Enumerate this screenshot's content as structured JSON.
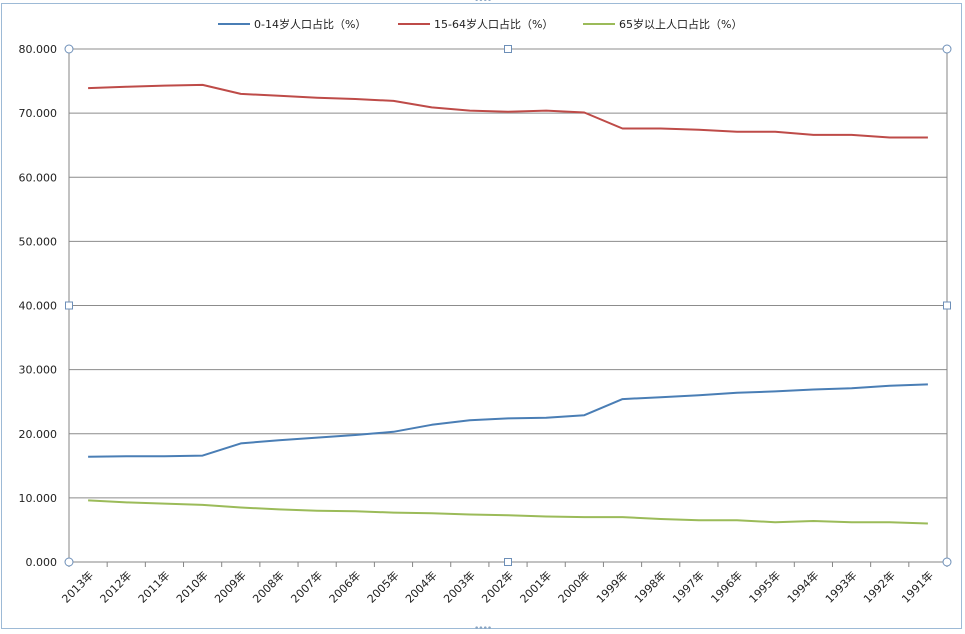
{
  "chart_data": {
    "type": "line",
    "categories": [
      "2013年",
      "2012年",
      "2011年",
      "2010年",
      "2009年",
      "2008年",
      "2007年",
      "2006年",
      "2005年",
      "2004年",
      "2003年",
      "2002年",
      "2001年",
      "2000年",
      "1999年",
      "1998年",
      "1997年",
      "1996年",
      "1995年",
      "1994年",
      "1993年",
      "1992年",
      "1991年"
    ],
    "series": [
      {
        "name": "0-14岁人口占比（%）",
        "color": "#4a7eb5",
        "values": [
          16.4,
          16.5,
          16.5,
          16.6,
          18.5,
          19.0,
          19.4,
          19.8,
          20.3,
          21.4,
          22.1,
          22.4,
          22.5,
          22.9,
          25.4,
          25.7,
          26.0,
          26.4,
          26.6,
          26.9,
          27.1,
          27.5,
          27.7
        ]
      },
      {
        "name": "15-64岁人口占比（%）",
        "color": "#be4b48",
        "values": [
          73.9,
          74.1,
          74.3,
          74.4,
          73.0,
          72.7,
          72.4,
          72.2,
          71.9,
          70.9,
          70.4,
          70.2,
          70.4,
          70.1,
          67.6,
          67.6,
          67.4,
          67.1,
          67.1,
          66.6,
          66.6,
          66.2,
          66.2
        ]
      },
      {
        "name": "65岁以上人口占比（%）",
        "color": "#9bbb59",
        "values": [
          9.6,
          9.3,
          9.1,
          8.9,
          8.5,
          8.2,
          8.0,
          7.9,
          7.7,
          7.6,
          7.4,
          7.3,
          7.1,
          7.0,
          7.0,
          6.7,
          6.5,
          6.5,
          6.2,
          6.4,
          6.2,
          6.2,
          6.0
        ]
      }
    ],
    "yticks": [
      "0.000",
      "10.000",
      "20.000",
      "30.000",
      "40.000",
      "50.000",
      "60.000",
      "70.000",
      "80.000"
    ],
    "ylim": [
      0,
      80
    ],
    "grid": true,
    "legend_position": "top"
  }
}
